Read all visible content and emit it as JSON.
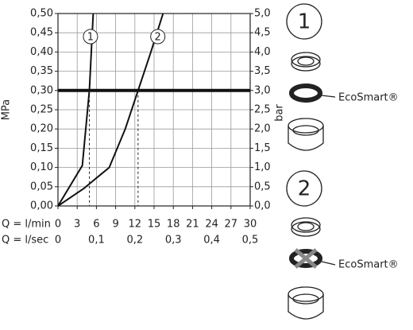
{
  "chart_data": {
    "type": "line",
    "x_label": "Q = l/min",
    "x2_label": "Q = l/sec",
    "y_label": "MPa",
    "y2_label": "bar",
    "xlim": [
      0,
      30
    ],
    "xticks": [
      0,
      3,
      6,
      9,
      12,
      15,
      18,
      21,
      24,
      27,
      30
    ],
    "x2lim": [
      0,
      0.5
    ],
    "x2ticks": [
      0,
      {
        "value": 0.1,
        "label": "0,1"
      },
      {
        "value": 0.2,
        "label": "0,2"
      },
      {
        "value": 0.3,
        "label": "0,3"
      },
      {
        "value": 0.4,
        "label": "0,4"
      },
      {
        "value": 0.5,
        "label": "0,5"
      }
    ],
    "ylim": [
      0,
      0.5
    ],
    "yticks": [
      {
        "value": 0,
        "label": "0,00"
      },
      {
        "value": 0.05,
        "label": "0,05"
      },
      {
        "value": 0.1,
        "label": "0,10"
      },
      {
        "value": 0.15,
        "label": "0,15"
      },
      {
        "value": 0.2,
        "label": "0,20"
      },
      {
        "value": 0.25,
        "label": "0,25"
      },
      {
        "value": 0.3,
        "label": "0,30"
      },
      {
        "value": 0.35,
        "label": "0,35"
      },
      {
        "value": 0.4,
        "label": "0,40"
      },
      {
        "value": 0.45,
        "label": "0,45"
      },
      {
        "value": 0.5,
        "label": "0,50"
      }
    ],
    "y2lim": [
      0,
      5
    ],
    "y2ticks": [
      {
        "value": 0,
        "label": "0,0"
      },
      {
        "value": 0.5,
        "label": "0,5"
      },
      {
        "value": 1,
        "label": "1,0"
      },
      {
        "value": 1.5,
        "label": "1,5"
      },
      {
        "value": 2,
        "label": "2,0"
      },
      {
        "value": 2.5,
        "label": "2,5"
      },
      {
        "value": 3,
        "label": "3,0"
      },
      {
        "value": 3.5,
        "label": "3,5"
      },
      {
        "value": 4,
        "label": "4,0"
      },
      {
        "value": 4.5,
        "label": "4,5"
      },
      {
        "value": 5,
        "label": "5,0"
      }
    ],
    "grid": true,
    "reference_y": 0.3,
    "series": [
      {
        "name": "1",
        "color": "#111111",
        "x": [
          0,
          3.8,
          4.9,
          5.5
        ],
        "values": [
          0,
          0.105,
          0.3,
          0.5
        ],
        "x_at_reference": 4.9
      },
      {
        "name": "2",
        "color": "#111111",
        "x": [
          0,
          4,
          8,
          10.5,
          12.5,
          14.5,
          16.4
        ],
        "values": [
          0,
          0.045,
          0.1,
          0.2,
          0.3,
          0.4,
          0.5
        ],
        "x_at_reference": 12.5
      }
    ],
    "panel_labels": [
      "EcoSmart®",
      "EcoSmart®"
    ]
  }
}
